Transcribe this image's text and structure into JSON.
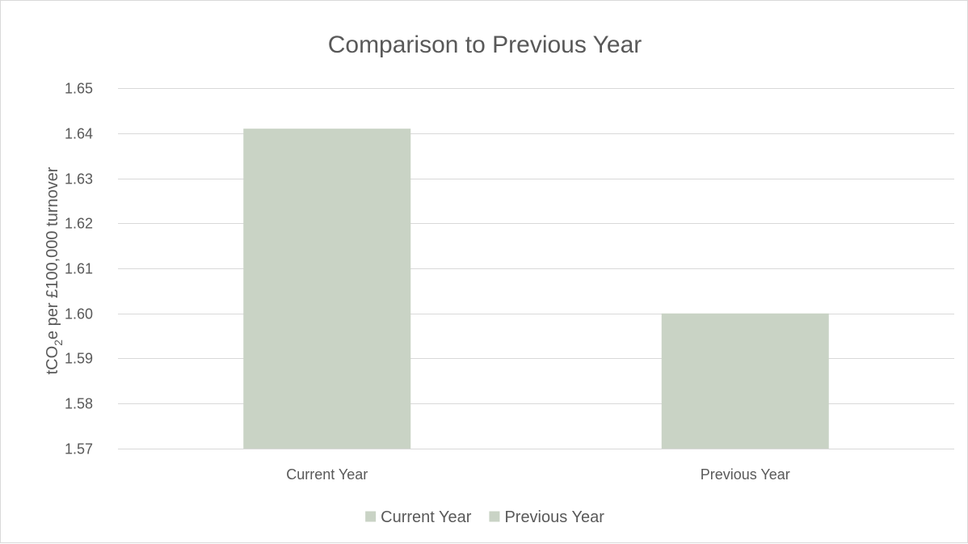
{
  "chart_data": {
    "type": "bar",
    "title": "Comparison to Previous Year",
    "ylabel": {
      "prefix": "tCO",
      "subscript": "2",
      "suffix": "e per £100,000 turnover"
    },
    "xlabel": "",
    "categories": [
      "Current Year",
      "Previous Year"
    ],
    "series": [
      {
        "name": "Current Year",
        "values": [
          1.641,
          null
        ]
      },
      {
        "name": "Previous Year",
        "values": [
          null,
          1.6
        ]
      }
    ],
    "ylim": [
      1.57,
      1.65
    ],
    "yticks": [
      "1.57",
      "1.58",
      "1.59",
      "1.60",
      "1.61",
      "1.62",
      "1.63",
      "1.64",
      "1.65"
    ],
    "grid": true,
    "legend": {
      "position": "bottom",
      "entries": [
        "Current Year",
        "Previous Year"
      ]
    },
    "colors": {
      "bar": "#c9d3c5",
      "legend_swatch": "#c9d3c5",
      "grid": "#d9d9d9",
      "text": "#595959",
      "border": "#d9d9d9"
    }
  }
}
